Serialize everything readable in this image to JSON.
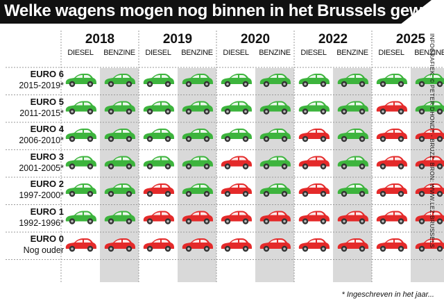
{
  "title": "Welke wagens mogen nog binnen in het Brussels gewest?",
  "credit": "INFOGRAFIEK: © PETER DHONDT - BRUZZ. BRON: WWW.LEZ.BRUSSELS",
  "footnote": "* Ingeschreven in het jaar...",
  "fuel_labels": [
    "DIESEL",
    "BENZINE"
  ],
  "years": [
    "2018",
    "2019",
    "2020",
    "2022",
    "2025"
  ],
  "rows": [
    {
      "euro": "EURO 6",
      "years": "2015-2019*"
    },
    {
      "euro": "EURO 5",
      "years": "2011-2015*"
    },
    {
      "euro": "EURO 4",
      "years": "2006-2010*"
    },
    {
      "euro": "EURO 3",
      "years": "2001-2005*"
    },
    {
      "euro": "EURO 2",
      "years": "1997-2000*"
    },
    {
      "euro": "EURO 1",
      "years": "1992-1996*"
    },
    {
      "euro": "EURO 0",
      "years": "Nog ouder"
    }
  ],
  "allowed_matrix_note": "per row, per year: [diesel, benzine]; 1 = allowed (green), 0 = not allowed (red)",
  "allowed": [
    [
      [
        1,
        1
      ],
      [
        1,
        1
      ],
      [
        1,
        1
      ],
      [
        1,
        1
      ],
      [
        1,
        1
      ]
    ],
    [
      [
        1,
        1
      ],
      [
        1,
        1
      ],
      [
        1,
        1
      ],
      [
        1,
        1
      ],
      [
        0,
        1
      ]
    ],
    [
      [
        1,
        1
      ],
      [
        1,
        1
      ],
      [
        1,
        1
      ],
      [
        0,
        1
      ],
      [
        0,
        0
      ]
    ],
    [
      [
        1,
        1
      ],
      [
        1,
        1
      ],
      [
        0,
        1
      ],
      [
        0,
        1
      ],
      [
        0,
        0
      ]
    ],
    [
      [
        1,
        1
      ],
      [
        0,
        1
      ],
      [
        0,
        1
      ],
      [
        0,
        1
      ],
      [
        0,
        0
      ]
    ],
    [
      [
        1,
        1
      ],
      [
        0,
        0
      ],
      [
        0,
        0
      ],
      [
        0,
        0
      ],
      [
        0,
        0
      ]
    ],
    [
      [
        0,
        0
      ],
      [
        0,
        0
      ],
      [
        0,
        0
      ],
      [
        0,
        0
      ],
      [
        0,
        0
      ]
    ]
  ],
  "colors": {
    "allowed": "#3db43d",
    "banned": "#e42a2a",
    "benzine_band": "#d9d9d9",
    "title_bg": "#111111",
    "separator": "#9a9a9a"
  },
  "icons": {
    "car": "car-icon"
  }
}
